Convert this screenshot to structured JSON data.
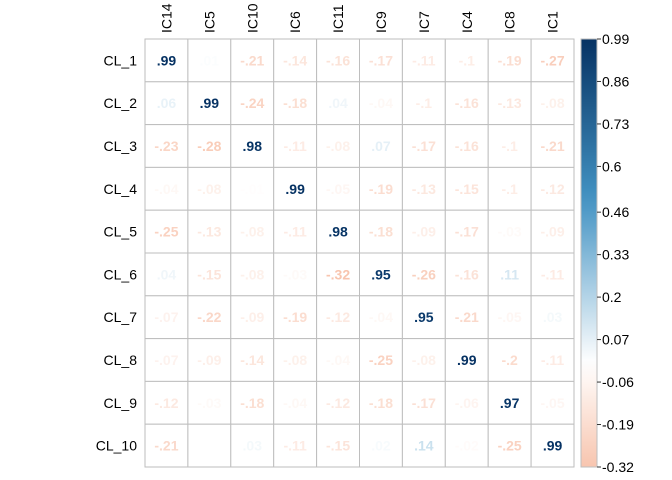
{
  "chart_data": {
    "type": "heatmap",
    "rows": [
      "CL_1",
      "CL_2",
      "CL_3",
      "CL_4",
      "CL_5",
      "CL_6",
      "CL_7",
      "CL_8",
      "CL_9",
      "CL_10"
    ],
    "columns": [
      "IC14",
      "IC5",
      "IC10",
      "IC6",
      "IC11",
      "IC9",
      "IC7",
      "IC4",
      "IC8",
      "IC1"
    ],
    "values": [
      [
        0.99,
        0.01,
        -0.21,
        -0.14,
        -0.16,
        -0.17,
        -0.11,
        -0.1,
        -0.19,
        -0.27
      ],
      [
        0.06,
        0.99,
        -0.24,
        -0.18,
        0.04,
        -0.04,
        -0.1,
        -0.16,
        -0.13,
        -0.08
      ],
      [
        -0.23,
        -0.28,
        0.98,
        -0.11,
        -0.08,
        0.07,
        -0.17,
        -0.16,
        -0.1,
        -0.21
      ],
      [
        -0.04,
        -0.08,
        -0.01,
        0.99,
        -0.05,
        -0.19,
        -0.13,
        -0.15,
        -0.1,
        -0.12
      ],
      [
        -0.25,
        -0.13,
        -0.08,
        -0.11,
        0.98,
        -0.18,
        -0.09,
        -0.17,
        -0.03,
        -0.09
      ],
      [
        0.04,
        -0.15,
        -0.08,
        -0.03,
        -0.32,
        0.95,
        -0.26,
        -0.16,
        0.11,
        -0.11
      ],
      [
        -0.07,
        -0.22,
        -0.09,
        -0.19,
        -0.12,
        -0.04,
        0.95,
        -0.21,
        -0.05,
        0.03
      ],
      [
        -0.07,
        -0.09,
        -0.14,
        -0.08,
        -0.04,
        -0.25,
        -0.08,
        0.99,
        -0.2,
        -0.11
      ],
      [
        -0.12,
        -0.03,
        -0.18,
        -0.04,
        -0.12,
        -0.18,
        -0.17,
        -0.06,
        0.97,
        -0.05
      ],
      [
        -0.21,
        0.0,
        0.03,
        -0.11,
        -0.15,
        0.02,
        0.14,
        -0.02,
        -0.25,
        0.99
      ]
    ],
    "colorbar": {
      "min": -0.32,
      "max": 0.99,
      "ticks": [
        "0.99",
        "0.86",
        "0.73",
        "0.6",
        "0.46",
        "0.33",
        "0.2",
        "0.07",
        "-0.06",
        "-0.19",
        "-0.32"
      ]
    },
    "grid": true,
    "colors": {
      "neg_end": "#B2182B",
      "neg_mid": "#F4A582",
      "center": "#FFFFFF",
      "pos_mid": "#4393C3",
      "pos_end": "#053061",
      "grid": "#BEBEBE"
    }
  }
}
